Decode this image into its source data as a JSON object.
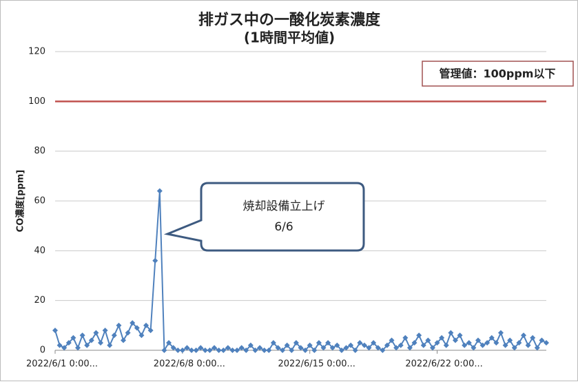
{
  "chart_data": {
    "type": "line",
    "title": "排ガス中の一酸化炭素濃度",
    "subtitle": "(1時間平均値)",
    "ylabel": "CO濃度[ppm]",
    "limit_label": "管理値：100ppm以下",
    "limit": 100,
    "limit_color": "#c0504d",
    "annotation": [
      "焼却設備立上げ",
      "6/6"
    ],
    "color": "#4f81bd",
    "values": [
      8,
      2,
      1,
      3,
      5,
      1,
      6,
      2,
      4,
      7,
      3,
      8,
      2,
      6,
      10,
      4,
      7,
      11,
      9,
      6,
      10,
      8,
      36,
      64,
      0,
      3,
      1,
      0,
      0,
      1,
      0,
      0,
      1,
      0,
      0,
      1,
      0,
      0,
      1,
      0,
      0,
      1,
      0,
      2,
      0,
      1,
      0,
      0,
      3,
      1,
      0,
      2,
      0,
      3,
      1,
      0,
      2,
      0,
      3,
      1,
      3,
      1,
      2,
      0,
      1,
      2,
      0,
      3,
      2,
      1,
      3,
      1,
      0,
      2,
      4,
      1,
      2,
      5,
      1,
      3,
      6,
      2,
      4,
      1,
      3,
      5,
      2,
      7,
      4,
      6,
      2,
      3,
      1,
      4,
      2,
      3,
      5,
      3,
      7,
      2,
      4,
      1,
      3,
      6,
      2,
      5,
      1,
      4,
      3
    ],
    "xticks": [
      {
        "value": 0,
        "label": "2022/6/1 0:00..."
      },
      {
        "value": 28,
        "label": "2022/6/8 0:00..."
      },
      {
        "value": 56,
        "label": "2022/6/15 0:00..."
      },
      {
        "value": 84,
        "label": "2022/6/22 0:00..."
      }
    ],
    "ylim": [
      0,
      120
    ],
    "yticks": [
      0,
      20,
      40,
      60,
      80,
      100,
      120
    ],
    "grid": true
  }
}
